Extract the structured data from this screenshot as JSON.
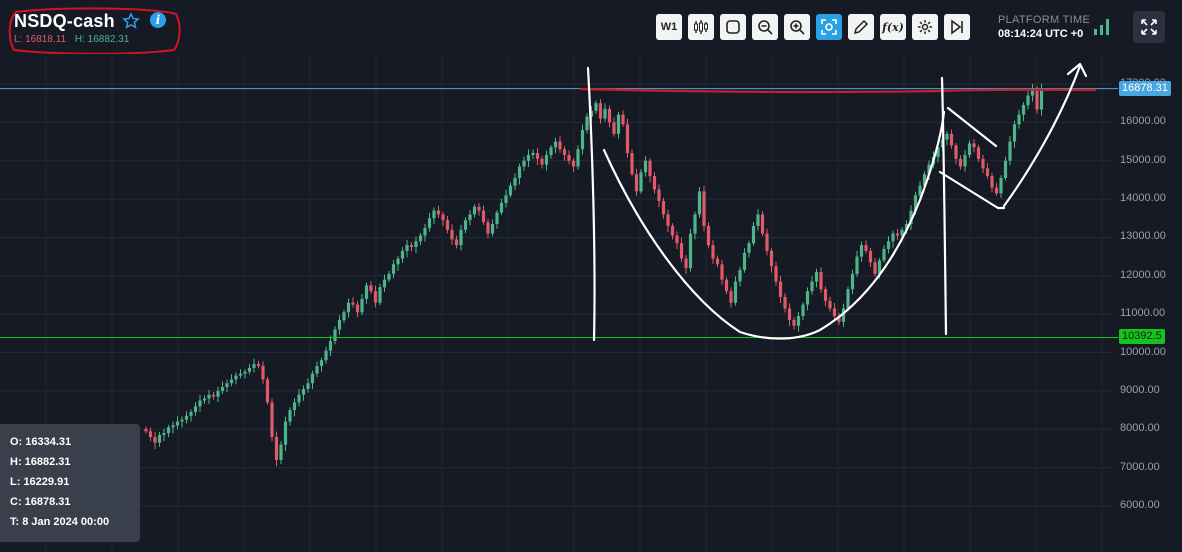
{
  "symbol": "NSDQ-cash",
  "session_low_label": "L: 16818.11",
  "session_high_label": "H: 16882.31",
  "toolbar": {
    "timeframe": "W1",
    "buttons": [
      "timeframe-w1",
      "candles-icon",
      "shape-icon",
      "zoom-out-icon",
      "zoom-in-icon",
      "fit-icon",
      "pencil-icon",
      "function-icon",
      "gear-icon",
      "skip-end-icon"
    ],
    "active": "fit-icon"
  },
  "platform_time": {
    "label": "PLATFORM TIME",
    "value": "08:14:24 UTC +0"
  },
  "ohlc_panel": {
    "open": "O: 16334.31",
    "high": "H: 16882.31",
    "low": "L: 16229.91",
    "close": "C: 16878.31",
    "time": "T: 8 Jan 2024 00:00"
  },
  "colors": {
    "background": "#161a25",
    "up": "#4cb58a",
    "down": "#e05a6a",
    "support": "#18c21e",
    "current": "#4aa6e0",
    "drawing": "#ffffff",
    "resistance": "#c81e28"
  },
  "chart_data": {
    "type": "candlestick",
    "timeframe": "W1",
    "y_ticks": [
      "17000.00",
      "16000.00",
      "15000.00",
      "14000.00",
      "13000.00",
      "12000.00",
      "11000.00",
      "10000.00",
      "9000.00",
      "8000.00",
      "7000.00",
      "6000.00"
    ],
    "ylim": [
      5600,
      17700
    ],
    "current_price": {
      "value": 16878.31,
      "label": "16878.31"
    },
    "support_line": {
      "value": 10392.5,
      "label": "10392.5"
    },
    "resistance_line": {
      "value": 16830
    },
    "close_series": [
      7950,
      7800,
      7650,
      7850,
      7900,
      8050,
      8100,
      8200,
      8250,
      8350,
      8450,
      8600,
      8750,
      8800,
      8900,
      8850,
      9000,
      9100,
      9200,
      9300,
      9400,
      9450,
      9500,
      9600,
      9700,
      9650,
      9300,
      8700,
      7800,
      7200,
      7600,
      8200,
      8500,
      8700,
      8900,
      9050,
      9200,
      9450,
      9650,
      9800,
      10050,
      10300,
      10600,
      10850,
      11050,
      11300,
      11250,
      11050,
      11400,
      11750,
      11600,
      11300,
      11700,
      11900,
      12050,
      12300,
      12450,
      12650,
      12800,
      12750,
      12900,
      13050,
      13250,
      13500,
      13700,
      13600,
      13450,
      13200,
      12950,
      12800,
      13200,
      13450,
      13600,
      13800,
      13700,
      13400,
      13100,
      13350,
      13650,
      13900,
      14100,
      14350,
      14550,
      14850,
      15000,
      15150,
      15200,
      15050,
      14900,
      15150,
      15350,
      15500,
      15300,
      15150,
      15000,
      14850,
      15300,
      15800,
      16150,
      16300,
      16500,
      16100,
      16350,
      16000,
      15700,
      16200,
      15950,
      15200,
      14650,
      14200,
      14700,
      15000,
      14600,
      14250,
      13950,
      13600,
      13300,
      13050,
      12850,
      12450,
      12200,
      13100,
      13600,
      14200,
      13300,
      12800,
      12450,
      12300,
      11900,
      11600,
      11300,
      11850,
      12150,
      12600,
      12850,
      13300,
      13600,
      13100,
      12650,
      12250,
      11850,
      11450,
      11150,
      10850,
      10700,
      10950,
      11250,
      11600,
      11850,
      12100,
      11650,
      11350,
      11150,
      10950,
      10800,
      11150,
      11650,
      12050,
      12500,
      12800,
      12650,
      12350,
      12050,
      12400,
      12700,
      12900,
      13100,
      13050,
      13200,
      13350,
      13700,
      14100,
      14350,
      14650,
      14900,
      15100,
      15350,
      15550,
      15700,
      15400,
      15050,
      14850,
      15150,
      15450,
      15350,
      15050,
      14800,
      14600,
      14300,
      14150,
      14550,
      15000,
      15500,
      15950,
      16200,
      16450,
      16700,
      16850,
      16334,
      16878
    ],
    "x_tick_labels_partially_visible": true
  }
}
